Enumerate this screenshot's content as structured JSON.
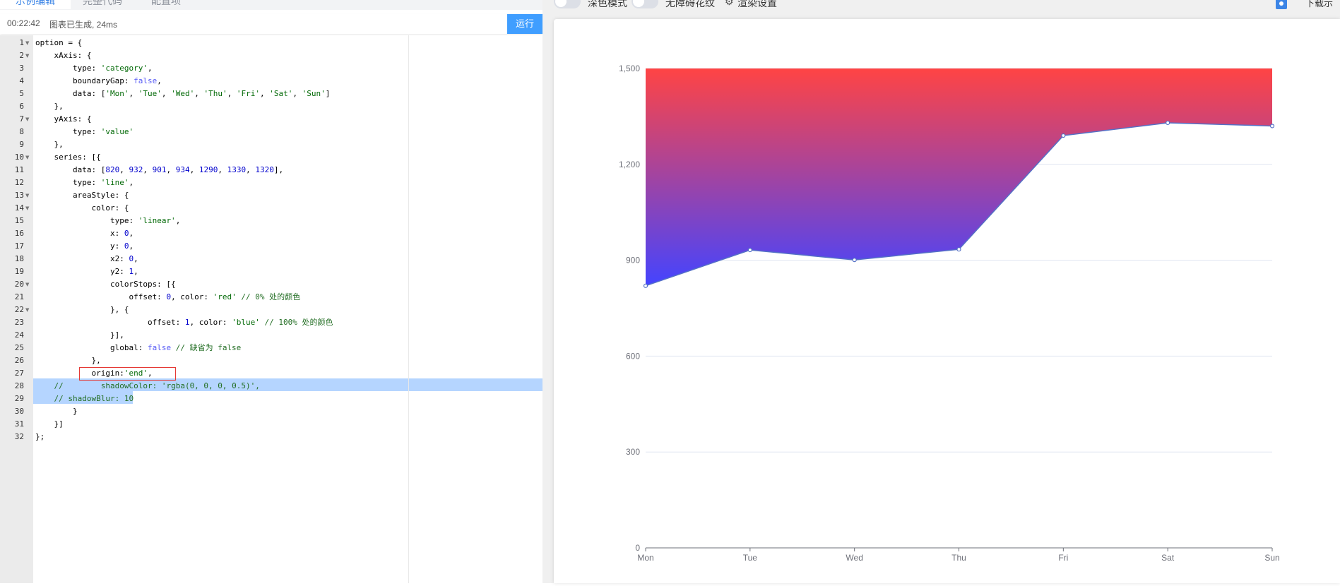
{
  "tabs": [
    {
      "label": "示例编辑",
      "active": true
    },
    {
      "label": "完整代码",
      "active": false
    },
    {
      "label": "配置项",
      "active": false
    }
  ],
  "status": {
    "time": "00:22:42",
    "message": "图表已生成, 24ms",
    "run_label": "运行"
  },
  "toolbar": {
    "dark_mode_label": "深色模式",
    "no_barrier_label": "无障碍花纹",
    "render_settings_label": "渲染设置",
    "download_label": "下载示例",
    "dark_mode_on": false,
    "no_barrier_on": false
  },
  "editor": {
    "line_count": 32,
    "highlighted_lines": [
      28,
      29
    ],
    "boxed_line": 27
  },
  "chart_data": {
    "type": "line",
    "area": true,
    "categories": [
      "Mon",
      "Tue",
      "Wed",
      "Thu",
      "Fri",
      "Sat",
      "Sun"
    ],
    "values": [
      820,
      932,
      901,
      934,
      1290,
      1330,
      1320
    ],
    "y_ticks": [
      "0",
      "300",
      "600",
      "900",
      "1,200",
      "1,500"
    ],
    "ylim": [
      0,
      1500
    ],
    "area_origin": "end",
    "gradient": {
      "top": "#ff4444",
      "bottom": "#4444ff"
    },
    "line_color": "#5470c6",
    "grid": true
  }
}
